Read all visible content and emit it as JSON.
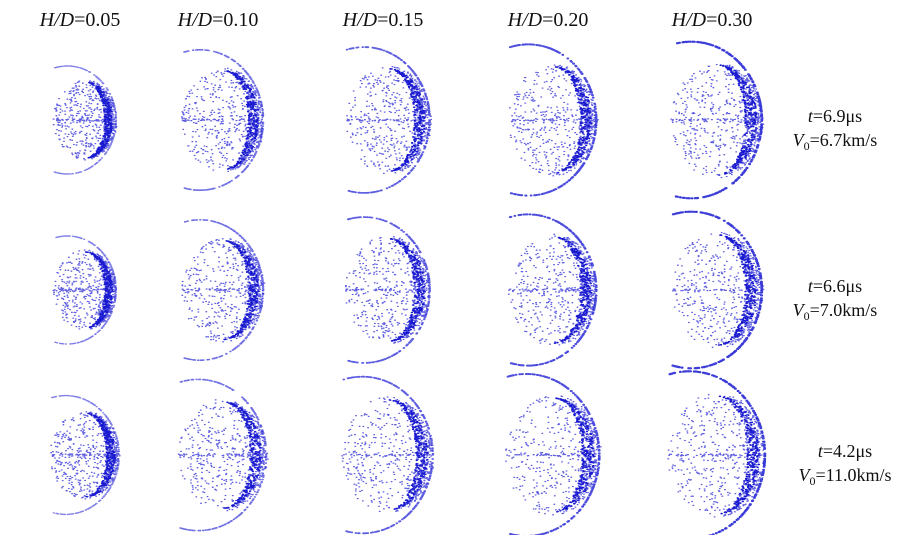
{
  "columns": [
    {
      "param": "H/D",
      "value": "=0.05"
    },
    {
      "param": "H/D",
      "value": "=0.10"
    },
    {
      "param": "H/D",
      "value": "=0.15"
    },
    {
      "param": "H/D",
      "value": "=0.20"
    },
    {
      "param": "H/D",
      "value": "=0.30"
    }
  ],
  "rows": [
    {
      "t_symbol": "t",
      "t_value": "=6.9μs",
      "v_symbol": "V",
      "v_subscript": "0",
      "v_value": "=6.7km/s"
    },
    {
      "t_symbol": "t",
      "t_value": "=6.6μs",
      "v_symbol": "V",
      "v_subscript": "0",
      "v_value": "=7.0km/s"
    },
    {
      "t_symbol": "t",
      "t_value": "=4.2μs",
      "v_symbol": "V",
      "v_subscript": "0",
      "v_value": "=11.0km/s"
    }
  ]
}
